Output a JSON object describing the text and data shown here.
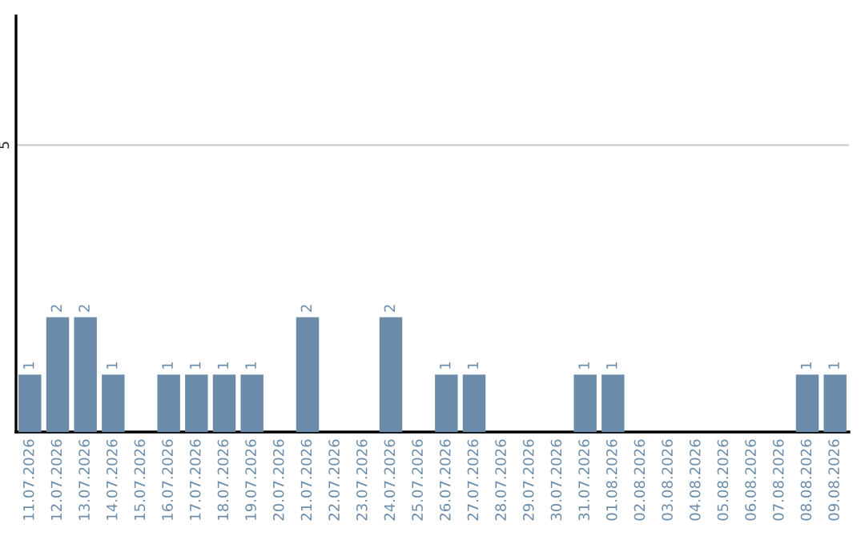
{
  "chart_data": {
    "type": "bar",
    "categories": [
      "11.07.2026",
      "12.07.2026",
      "13.07.2026",
      "14.07.2026",
      "15.07.2026",
      "16.07.2026",
      "17.07.2026",
      "18.07.2026",
      "19.07.2026",
      "20.07.2026",
      "21.07.2026",
      "22.07.2026",
      "23.07.2026",
      "24.07.2026",
      "25.07.2026",
      "26.07.2026",
      "27.07.2026",
      "28.07.2026",
      "29.07.2026",
      "30.07.2026",
      "31.07.2026",
      "01.08.2026",
      "02.08.2026",
      "03.08.2026",
      "04.08.2026",
      "05.08.2026",
      "06.08.2026",
      "07.08.2026",
      "08.08.2026",
      "09.08.2026"
    ],
    "values": [
      1,
      2,
      2,
      1,
      0,
      1,
      1,
      1,
      1,
      0,
      2,
      0,
      0,
      2,
      0,
      1,
      1,
      0,
      0,
      0,
      1,
      1,
      0,
      0,
      0,
      0,
      0,
      0,
      1,
      1
    ],
    "value_labels": [
      "1",
      "2",
      "2",
      "1",
      null,
      "1",
      "1",
      "1",
      "1",
      null,
      "2",
      null,
      null,
      "2",
      null,
      "1",
      "1",
      null,
      null,
      null,
      "1",
      "1",
      null,
      null,
      null,
      null,
      null,
      null,
      "1",
      "1"
    ],
    "color": "#6a8caa",
    "ylim": [
      0,
      7.25
    ],
    "yticks": [
      5
    ],
    "grid": "y",
    "legend": false
  }
}
